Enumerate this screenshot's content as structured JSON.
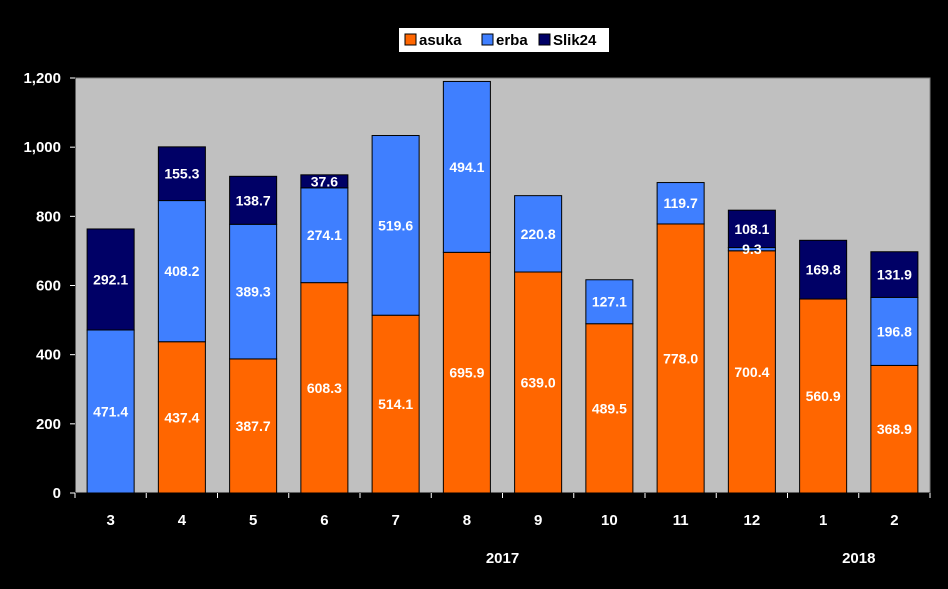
{
  "chart_data": {
    "type": "bar",
    "stacked": true,
    "categories": [
      "3",
      "4",
      "5",
      "6",
      "7",
      "8",
      "9",
      "10",
      "11",
      "12",
      "1",
      "2"
    ],
    "year_labels": [
      {
        "text": "2017",
        "category_index": 5.5
      },
      {
        "text": "2018",
        "category_index": 10.5
      }
    ],
    "series": [
      {
        "name": "asuka",
        "color": "#FF6600",
        "values": [
          0,
          437.4,
          387.7,
          608.3,
          514.1,
          695.9,
          639.0,
          489.5,
          778.0,
          700.4,
          560.9,
          368.9
        ],
        "labels": [
          "",
          "437.4",
          "387.7",
          "608.3",
          "514.1",
          "695.9",
          "639.0",
          "489.5",
          "778.0",
          "700.4",
          "560.9",
          "368.9"
        ]
      },
      {
        "name": "erba",
        "color": "#3F7FFF",
        "values": [
          471.4,
          408.2,
          389.3,
          274.1,
          519.6,
          494.1,
          220.8,
          127.1,
          119.7,
          9.3,
          0,
          196.8
        ],
        "labels": [
          "471.4",
          "408.2",
          "389.3",
          "274.1",
          "519.6",
          "494.1",
          "220.8",
          "127.1",
          "119.7",
          "9.3",
          "",
          "196.8"
        ]
      },
      {
        "name": "Slik24",
        "color": "#000066",
        "values": [
          292.1,
          155.3,
          138.7,
          37.6,
          0,
          0,
          0,
          0,
          0,
          108.1,
          169.8,
          131.9
        ],
        "labels": [
          "292.1",
          "155.3",
          "138.7",
          "37.6",
          "",
          "",
          "",
          "",
          "",
          "108.1",
          "169.8",
          "131.9"
        ]
      }
    ],
    "ylim": [
      0,
      1200
    ],
    "yticks": [
      0,
      200,
      400,
      600,
      800,
      1000,
      1200
    ],
    "ytick_labels": [
      "0",
      "200",
      "400",
      "600",
      "800",
      "1,000",
      "1,200"
    ],
    "grid": false,
    "legend": "top-center",
    "plot_background": "#C0C0C0",
    "background": "#000000"
  }
}
